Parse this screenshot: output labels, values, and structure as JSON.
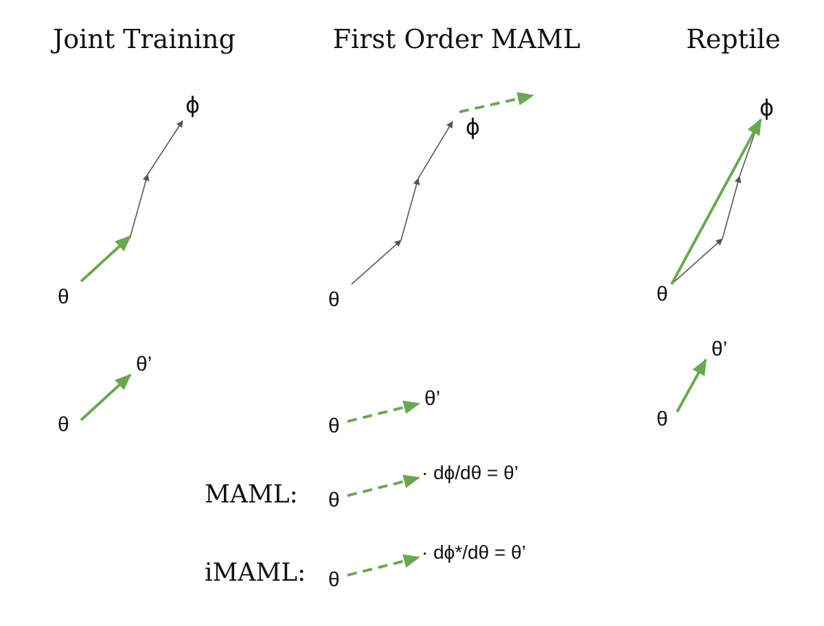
{
  "titles": {
    "joint": "Joint Training",
    "fomaml": "First Order MAML",
    "reptile": "Reptile"
  },
  "labels": {
    "theta": "θ",
    "theta_prime": "θ’",
    "phi": "ϕ"
  },
  "rows": {
    "maml_label": "MAML:",
    "maml_eq": "· dϕ/dθ = θ’",
    "imaml_label": "iMAML:",
    "imaml_eq": "· dϕ*/dθ = θ’"
  },
  "colors": {
    "green": "#6aa84f",
    "gray": "#555555"
  }
}
